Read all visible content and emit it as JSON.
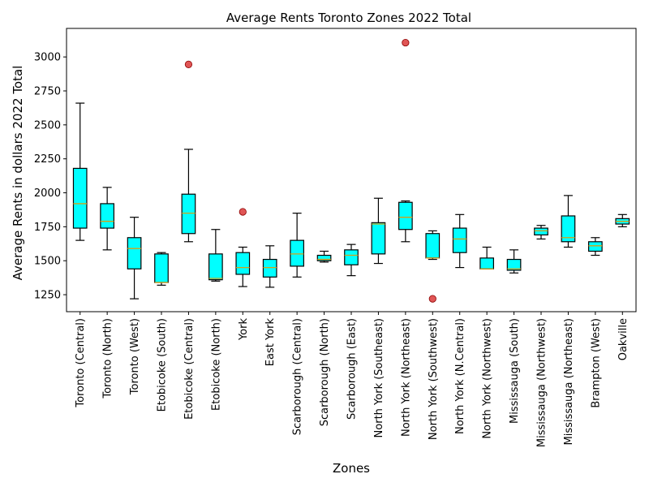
{
  "chart_data": {
    "type": "box",
    "title": "Average Rents Toronto Zones 2022 Total",
    "xlabel": "Zones",
    "ylabel": "Average Rents in dollars 2022 Total",
    "ylim": [
      1125,
      3210
    ],
    "yticks": [
      1250,
      1500,
      1750,
      2000,
      2250,
      2500,
      2750,
      3000
    ],
    "grid": false,
    "colors": {
      "box_fill": "#00ffff",
      "box_edge": "#000000",
      "median": "#d4a017",
      "outlier_fill": "#e05555",
      "outlier_edge": "#8b0000"
    },
    "boxes": [
      {
        "zone": "Toronto (Central)",
        "whisker_low": 1650,
        "q1": 1740,
        "median": 1920,
        "q3": 2180,
        "whisker_high": 2660,
        "outliers": []
      },
      {
        "zone": "Toronto (North)",
        "whisker_low": 1580,
        "q1": 1740,
        "median": 1790,
        "q3": 1920,
        "whisker_high": 2040,
        "outliers": []
      },
      {
        "zone": "Toronto (West)",
        "whisker_low": 1220,
        "q1": 1440,
        "median": 1590,
        "q3": 1670,
        "whisker_high": 1820,
        "outliers": []
      },
      {
        "zone": "Etobicoke (South)",
        "whisker_low": 1320,
        "q1": 1340,
        "median": 1340,
        "q3": 1550,
        "whisker_high": 1560,
        "outliers": []
      },
      {
        "zone": "Etobicoke (Central)",
        "whisker_low": 1640,
        "q1": 1700,
        "median": 1850,
        "q3": 1990,
        "whisker_high": 2320,
        "outliers": [
          2945
        ]
      },
      {
        "zone": "Etobicoke (North)",
        "whisker_low": 1350,
        "q1": 1360,
        "median": 1370,
        "q3": 1550,
        "whisker_high": 1730,
        "outliers": []
      },
      {
        "zone": "York",
        "whisker_low": 1310,
        "q1": 1400,
        "median": 1450,
        "q3": 1560,
        "whisker_high": 1600,
        "outliers": [
          1860
        ]
      },
      {
        "zone": "East York",
        "whisker_low": 1305,
        "q1": 1380,
        "median": 1450,
        "q3": 1510,
        "whisker_high": 1610,
        "outliers": []
      },
      {
        "zone": "Scarborough (Central)",
        "whisker_low": 1380,
        "q1": 1460,
        "median": 1550,
        "q3": 1650,
        "whisker_high": 1850,
        "outliers": []
      },
      {
        "zone": "Scarborough (North)",
        "whisker_low": 1490,
        "q1": 1500,
        "median": 1510,
        "q3": 1540,
        "whisker_high": 1570,
        "outliers": []
      },
      {
        "zone": "Scarborough (East)",
        "whisker_low": 1390,
        "q1": 1470,
        "median": 1540,
        "q3": 1580,
        "whisker_high": 1620,
        "outliers": []
      },
      {
        "zone": "North York (Southeast)",
        "whisker_low": 1480,
        "q1": 1550,
        "median": 1770,
        "q3": 1780,
        "whisker_high": 1960,
        "outliers": []
      },
      {
        "zone": "North York (Northeast)",
        "whisker_low": 1640,
        "q1": 1730,
        "median": 1820,
        "q3": 1930,
        "whisker_high": 1940,
        "outliers": [
          3105
        ]
      },
      {
        "zone": "North York (Southwest)",
        "whisker_low": 1510,
        "q1": 1520,
        "median": 1520,
        "q3": 1700,
        "whisker_high": 1720,
        "outliers": [
          1220
        ]
      },
      {
        "zone": "North York (N.Central)",
        "whisker_low": 1450,
        "q1": 1560,
        "median": 1660,
        "q3": 1740,
        "whisker_high": 1840,
        "outliers": []
      },
      {
        "zone": "North York (Northwest)",
        "whisker_low": 1440,
        "q1": 1440,
        "median": 1440,
        "q3": 1520,
        "whisker_high": 1600,
        "outliers": []
      },
      {
        "zone": "Mississauga (South)",
        "whisker_low": 1410,
        "q1": 1430,
        "median": 1440,
        "q3": 1510,
        "whisker_high": 1580,
        "outliers": []
      },
      {
        "zone": "Mississauga (Northwest)",
        "whisker_low": 1660,
        "q1": 1690,
        "median": 1720,
        "q3": 1740,
        "whisker_high": 1760,
        "outliers": []
      },
      {
        "zone": "Mississauga (Northeast)",
        "whisker_low": 1600,
        "q1": 1640,
        "median": 1670,
        "q3": 1830,
        "whisker_high": 1980,
        "outliers": []
      },
      {
        "zone": "Brampton (West)",
        "whisker_low": 1540,
        "q1": 1570,
        "median": 1610,
        "q3": 1640,
        "whisker_high": 1670,
        "outliers": []
      },
      {
        "zone": "Oakville",
        "whisker_low": 1750,
        "q1": 1770,
        "median": 1790,
        "q3": 1810,
        "whisker_high": 1840,
        "outliers": []
      }
    ]
  }
}
